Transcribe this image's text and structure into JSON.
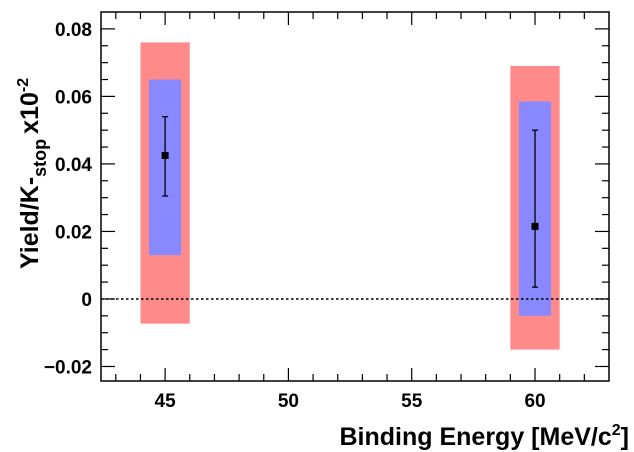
{
  "chart_data": {
    "type": "scatter",
    "xlabel": "Binding Energy [MeV/c",
    "xlabel_sup": "2",
    "xlabel_end": "]",
    "ylabel_main": "Yield/K",
    "ylabel_sub": "stop",
    "ylabel_scale": "x10",
    "ylabel_scale_sup": "-2",
    "xlim": [
      42.4,
      63.0
    ],
    "ylim": [
      -0.0243,
      0.085
    ],
    "x_ticks": [
      45,
      50,
      55,
      60
    ],
    "x_tick_labels": [
      "45",
      "50",
      "55",
      "60"
    ],
    "y_ticks": [
      -0.02,
      0,
      0.02,
      0.04,
      0.06,
      0.08
    ],
    "y_tick_labels": [
      "−0.02",
      "0",
      "0.02",
      "0.04",
      "0.06",
      "0.08"
    ],
    "reference_line_y": 0,
    "points": [
      {
        "x": 45,
        "y": 0.0425,
        "stat_err": [
          0.0305,
          0.054
        ],
        "sys_band": {
          "x": [
            44.35,
            45.65
          ],
          "y": [
            0.013,
            0.065
          ]
        },
        "total_band": {
          "x": [
            44.0,
            46.0
          ],
          "y": [
            -0.0073,
            0.076
          ]
        }
      },
      {
        "x": 60,
        "y": 0.0215,
        "stat_err": [
          0.0035,
          0.05
        ],
        "sys_band": {
          "x": [
            59.35,
            60.65
          ],
          "y": [
            -0.005,
            0.0585
          ]
        },
        "total_band": {
          "x": [
            59.0,
            61.0
          ],
          "y": [
            -0.015,
            0.069
          ]
        }
      }
    ],
    "colors": {
      "total_band": "#ff8a8a",
      "sys_band": "#8888ff",
      "marker": "#000000"
    },
    "grid": false
  }
}
